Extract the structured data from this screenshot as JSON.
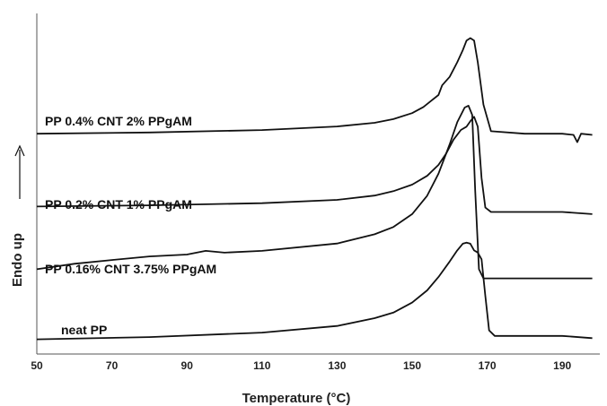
{
  "chart_data": {
    "type": "line",
    "xlabel": "Temperature (°C)",
    "ylabel": "Endo up",
    "xlim": [
      50,
      200
    ],
    "xticks": [
      50,
      70,
      90,
      110,
      130,
      150,
      170,
      190
    ],
    "y_axis_ticks": false,
    "grid": false,
    "legend": "inline labels above curves",
    "series": [
      {
        "name": "PP 0.4% CNT 2% PPgAM",
        "x": [
          50,
          80,
          110,
          130,
          140,
          145,
          150,
          153,
          155,
          157,
          158,
          160,
          162,
          163.5,
          164.5,
          165.5,
          166.5,
          167.5,
          169,
          171,
          180,
          190,
          193,
          194,
          195,
          198
        ],
        "y": [
          0.11,
          0.12,
          0.14,
          0.17,
          0.2,
          0.23,
          0.28,
          0.33,
          0.38,
          0.43,
          0.51,
          0.58,
          0.7,
          0.8,
          0.88,
          0.9,
          0.88,
          0.7,
          0.35,
          0.13,
          0.11,
          0.11,
          0.1,
          0.04,
          0.11,
          0.1
        ]
      },
      {
        "name": "PP 0.2% CNT 1% PPgAM",
        "x": [
          50,
          80,
          110,
          130,
          140,
          145,
          150,
          154,
          157,
          159,
          161,
          163,
          164.5,
          165.5,
          166.5,
          167.5,
          168.5,
          169.5,
          171,
          180,
          190,
          198
        ],
        "y": [
          0.12,
          0.13,
          0.15,
          0.18,
          0.22,
          0.26,
          0.32,
          0.4,
          0.5,
          0.6,
          0.73,
          0.82,
          0.85,
          0.9,
          0.94,
          0.85,
          0.38,
          0.11,
          0.07,
          0.07,
          0.07,
          0.05
        ]
      },
      {
        "name": "PP 0.16% CNT 3.75% PPgAM",
        "x": [
          50,
          60,
          70,
          80,
          90,
          95,
          100,
          110,
          130,
          140,
          145,
          150,
          154,
          157,
          160,
          162,
          164,
          165,
          166,
          166.8,
          167.8,
          169,
          172,
          180,
          190,
          198
        ],
        "y": [
          0.12,
          0.15,
          0.17,
          0.19,
          0.2,
          0.22,
          0.21,
          0.22,
          0.26,
          0.31,
          0.35,
          0.42,
          0.52,
          0.64,
          0.8,
          0.92,
          1.0,
          1.01,
          0.96,
          0.55,
          0.12,
          0.07,
          0.07,
          0.07,
          0.07,
          0.07
        ]
      },
      {
        "name": "neat PP",
        "x": [
          50,
          80,
          110,
          130,
          140,
          145,
          150,
          154,
          157,
          160,
          162,
          163.5,
          164.5,
          165.5,
          166.5,
          167.5,
          168.5,
          169.5,
          170.5,
          172,
          180,
          190,
          198
        ],
        "y": [
          0.06,
          0.08,
          0.12,
          0.18,
          0.25,
          0.3,
          0.39,
          0.5,
          0.62,
          0.76,
          0.86,
          0.92,
          0.93,
          0.92,
          0.86,
          0.84,
          0.78,
          0.45,
          0.14,
          0.09,
          0.09,
          0.09,
          0.07
        ]
      }
    ]
  }
}
